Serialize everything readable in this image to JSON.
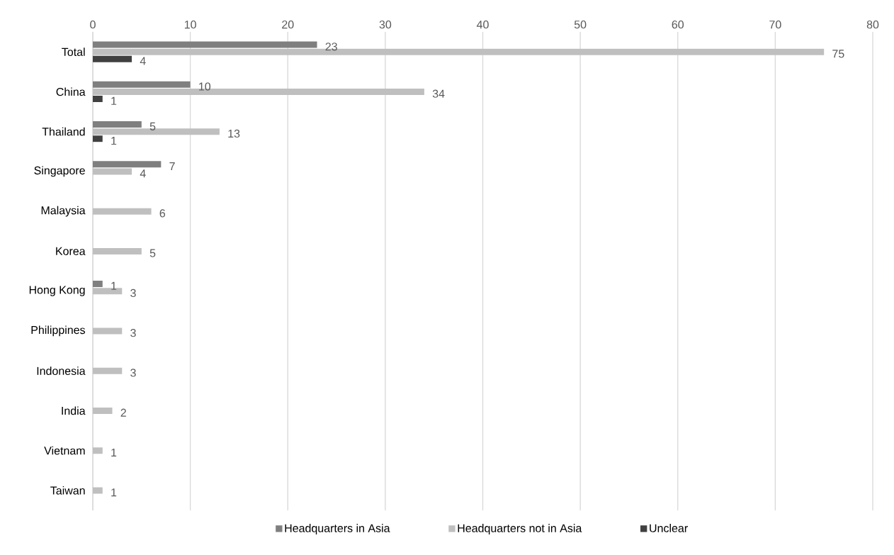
{
  "chart_data": {
    "type": "bar",
    "orientation": "horizontal",
    "categories": [
      "Total",
      "China",
      "Thailand",
      "Singapore",
      "Malaysia",
      "Korea",
      "Hong Kong",
      "Philippines",
      "Indonesia",
      "India",
      "Vietnam",
      "Taiwan"
    ],
    "series": [
      {
        "name": "Headquarters in Asia",
        "color": "#7f7f7f",
        "values": [
          23,
          10,
          5,
          7,
          null,
          null,
          1,
          null,
          null,
          null,
          null,
          null
        ]
      },
      {
        "name": "Headquarters not in Asia",
        "color": "#bfbfbf",
        "values": [
          75,
          34,
          13,
          4,
          6,
          5,
          3,
          3,
          3,
          2,
          1,
          1
        ]
      },
      {
        "name": "Unclear",
        "color": "#404040",
        "values": [
          4,
          1,
          1,
          null,
          null,
          null,
          null,
          null,
          null,
          null,
          null,
          null
        ]
      }
    ],
    "xlim": [
      0,
      80
    ],
    "xticks": [
      0,
      10,
      20,
      30,
      40,
      50,
      60,
      70,
      80
    ],
    "grid": "x",
    "legend": "bottom",
    "data_labels": true
  }
}
